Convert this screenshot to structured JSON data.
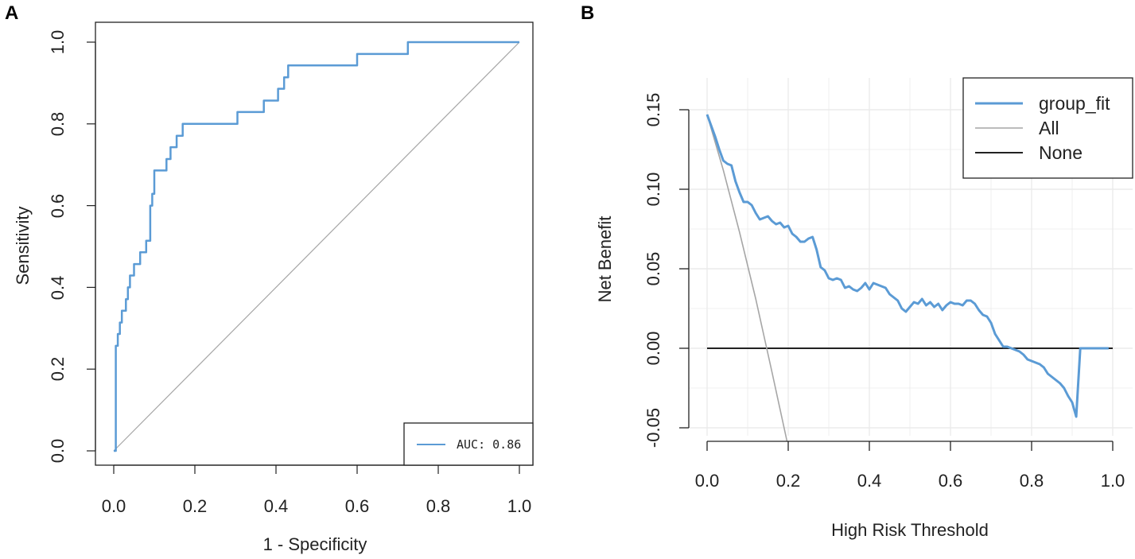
{
  "chart_data": [
    {
      "panel": "A",
      "type": "line",
      "title": "",
      "xlabel": "1 - Specificity",
      "ylabel": "Sensitivity",
      "xlim": [
        0,
        1
      ],
      "ylim": [
        0,
        1
      ],
      "xticks": [
        "0.0",
        "0.2",
        "0.4",
        "0.6",
        "0.8",
        "1.0"
      ],
      "yticks": [
        "0.0",
        "0.2",
        "0.4",
        "0.6",
        "0.8",
        "1.0"
      ],
      "legend": {
        "position": "bottom-right",
        "label": "AUC: 0.86"
      },
      "colors": {
        "roc": "#5b9bd5",
        "diagonal": "#a6a6a6"
      },
      "series": [
        {
          "name": "ROC",
          "x": [
            0,
            0.005,
            0.005,
            0.01,
            0.01,
            0.015,
            0.015,
            0.02,
            0.02,
            0.03,
            0.03,
            0.035,
            0.035,
            0.04,
            0.04,
            0.05,
            0.05,
            0.065,
            0.065,
            0.08,
            0.08,
            0.09,
            0.09,
            0.095,
            0.095,
            0.1,
            0.1,
            0.13,
            0.13,
            0.14,
            0.14,
            0.155,
            0.155,
            0.17,
            0.17,
            0.21,
            0.21,
            0.305,
            0.305,
            0.37,
            0.37,
            0.405,
            0.405,
            0.42,
            0.42,
            0.43,
            0.43,
            0.6,
            0.6,
            0.725,
            0.725,
            1.0
          ],
          "y": [
            0,
            0,
            0.257,
            0.257,
            0.286,
            0.286,
            0.314,
            0.314,
            0.343,
            0.343,
            0.371,
            0.371,
            0.4,
            0.4,
            0.429,
            0.429,
            0.457,
            0.457,
            0.486,
            0.486,
            0.514,
            0.514,
            0.6,
            0.6,
            0.629,
            0.629,
            0.686,
            0.686,
            0.714,
            0.714,
            0.743,
            0.743,
            0.771,
            0.771,
            0.8,
            0.8,
            0.8,
            0.8,
            0.829,
            0.829,
            0.857,
            0.857,
            0.886,
            0.886,
            0.914,
            0.914,
            0.943,
            0.943,
            0.971,
            0.971,
            1.0,
            1.0
          ]
        },
        {
          "name": "reference",
          "x": [
            0,
            1
          ],
          "y": [
            0,
            1
          ]
        }
      ]
    },
    {
      "panel": "B",
      "type": "line",
      "title": "",
      "xlabel": "High Risk Threshold",
      "ylabel": "Net Benefit",
      "xlim": [
        0,
        1
      ],
      "ylim": [
        -0.05,
        0.15
      ],
      "xticks": [
        "0.0",
        "0.2",
        "0.4",
        "0.6",
        "0.8",
        "1.0"
      ],
      "yticks": [
        "-0.05",
        "0.00",
        "0.05",
        "0.10",
        "0.15"
      ],
      "grid": true,
      "legend": {
        "position": "top-right",
        "entries": [
          "group_fit",
          "All",
          "None"
        ]
      },
      "colors": {
        "group_fit": "#5b9bd5",
        "All": "#a6a6a6",
        "None": "#222222",
        "grid": "#ebebeb"
      },
      "series": [
        {
          "name": "group_fit",
          "x": [
            0,
            0.01,
            0.02,
            0.03,
            0.04,
            0.05,
            0.06,
            0.07,
            0.08,
            0.09,
            0.1,
            0.11,
            0.12,
            0.13,
            0.14,
            0.15,
            0.16,
            0.17,
            0.18,
            0.19,
            0.2,
            0.21,
            0.22,
            0.23,
            0.24,
            0.25,
            0.26,
            0.27,
            0.28,
            0.29,
            0.3,
            0.31,
            0.32,
            0.33,
            0.34,
            0.35,
            0.36,
            0.37,
            0.38,
            0.39,
            0.4,
            0.41,
            0.42,
            0.43,
            0.44,
            0.45,
            0.46,
            0.47,
            0.48,
            0.49,
            0.5,
            0.51,
            0.52,
            0.53,
            0.54,
            0.55,
            0.56,
            0.57,
            0.58,
            0.59,
            0.6,
            0.61,
            0.62,
            0.63,
            0.64,
            0.65,
            0.66,
            0.67,
            0.68,
            0.69,
            0.7,
            0.71,
            0.72,
            0.73,
            0.74,
            0.75,
            0.76,
            0.77,
            0.78,
            0.79,
            0.8,
            0.81,
            0.82,
            0.83,
            0.84,
            0.85,
            0.86,
            0.87,
            0.88,
            0.89,
            0.9,
            0.91,
            0.92,
            0.93,
            0.94,
            0.95,
            0.96,
            0.97,
            0.98,
            0.99
          ],
          "y": [
            0.147,
            0.14,
            0.133,
            0.125,
            0.118,
            0.116,
            0.115,
            0.105,
            0.098,
            0.092,
            0.092,
            0.09,
            0.085,
            0.081,
            0.082,
            0.083,
            0.08,
            0.078,
            0.079,
            0.076,
            0.077,
            0.072,
            0.07,
            0.067,
            0.067,
            0.069,
            0.07,
            0.062,
            0.051,
            0.049,
            0.044,
            0.043,
            0.044,
            0.043,
            0.038,
            0.039,
            0.037,
            0.036,
            0.038,
            0.041,
            0.037,
            0.041,
            0.04,
            0.039,
            0.038,
            0.034,
            0.032,
            0.03,
            0.025,
            0.023,
            0.026,
            0.029,
            0.028,
            0.031,
            0.027,
            0.029,
            0.026,
            0.028,
            0.024,
            0.027,
            0.029,
            0.028,
            0.028,
            0.027,
            0.03,
            0.03,
            0.028,
            0.024,
            0.021,
            0.02,
            0.016,
            0.009,
            0.005,
            0.001,
            0.001,
            0.0,
            -0.001,
            -0.002,
            -0.004,
            -0.007,
            -0.008,
            -0.009,
            -0.01,
            -0.012,
            -0.016,
            -0.018,
            -0.02,
            -0.022,
            -0.025,
            -0.03,
            -0.034,
            -0.043,
            0.0,
            0.0,
            0.0,
            0.0,
            0.0,
            0.0,
            0.0,
            0.0
          ]
        },
        {
          "name": "All",
          "x": [
            0,
            0.04,
            0.08,
            0.12,
            0.16,
            0.197
          ],
          "y": [
            0.147,
            0.112,
            0.073,
            0.031,
            -0.015,
            -0.062
          ]
        },
        {
          "name": "None",
          "x": [
            0,
            1
          ],
          "y": [
            0,
            0
          ]
        }
      ]
    }
  ]
}
